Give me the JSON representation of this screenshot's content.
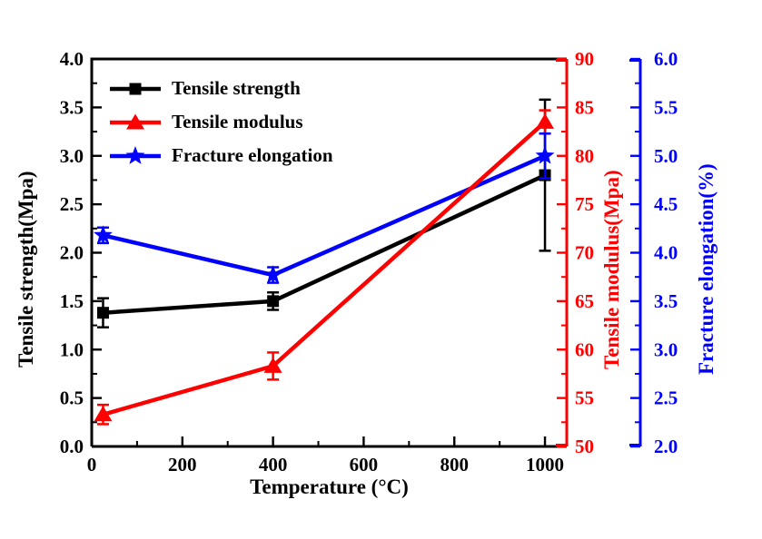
{
  "chart_data": {
    "type": "line",
    "title": "",
    "xlabel": "Temperature (°C)",
    "x": [
      25,
      400,
      1000
    ],
    "xlim": [
      0,
      1048
    ],
    "x_ticks": [
      0,
      200,
      400,
      600,
      800,
      1000
    ],
    "x_minor_ticks": [
      100,
      300,
      500,
      700,
      900
    ],
    "grid": false,
    "axes": [
      {
        "id": "left",
        "label": "Tensile strength(Mpa)",
        "color": "#000000",
        "lim": [
          0.0,
          4.0
        ],
        "ticks": [
          0.0,
          0.5,
          1.0,
          1.5,
          2.0,
          2.5,
          3.0,
          3.5,
          4.0
        ],
        "decimals": 1
      },
      {
        "id": "right1",
        "label": "Tensile modulus(Mpa)",
        "color": "#ff0000",
        "lim": [
          50,
          90
        ],
        "ticks": [
          50,
          55,
          60,
          65,
          70,
          75,
          80,
          85,
          90
        ],
        "decimals": 0
      },
      {
        "id": "right2",
        "label": "Fracture elongation(%)",
        "color": "#0000ff",
        "lim": [
          2.0,
          6.0
        ],
        "ticks": [
          2.0,
          2.5,
          3.0,
          3.5,
          4.0,
          4.5,
          5.0,
          5.5,
          6.0
        ],
        "decimals": 1
      }
    ],
    "series": [
      {
        "name": "Tensile strength",
        "axis": "left",
        "color": "#000000",
        "marker": "square",
        "values": [
          1.38,
          1.5,
          2.8
        ],
        "errors": [
          0.15,
          0.09,
          0.78
        ]
      },
      {
        "name": "Tensile modulus",
        "axis": "right1",
        "color": "#ff0000",
        "marker": "triangle",
        "values": [
          53.3,
          58.3,
          83.5
        ],
        "errors": [
          1.0,
          1.4,
          1.2
        ]
      },
      {
        "name": "Fracture elongation",
        "axis": "right2",
        "color": "#0000ff",
        "marker": "star",
        "values": [
          4.18,
          3.77,
          5.0
        ],
        "errors": [
          0.08,
          0.08,
          0.23
        ]
      }
    ],
    "legend": {
      "position": "top-left"
    }
  }
}
